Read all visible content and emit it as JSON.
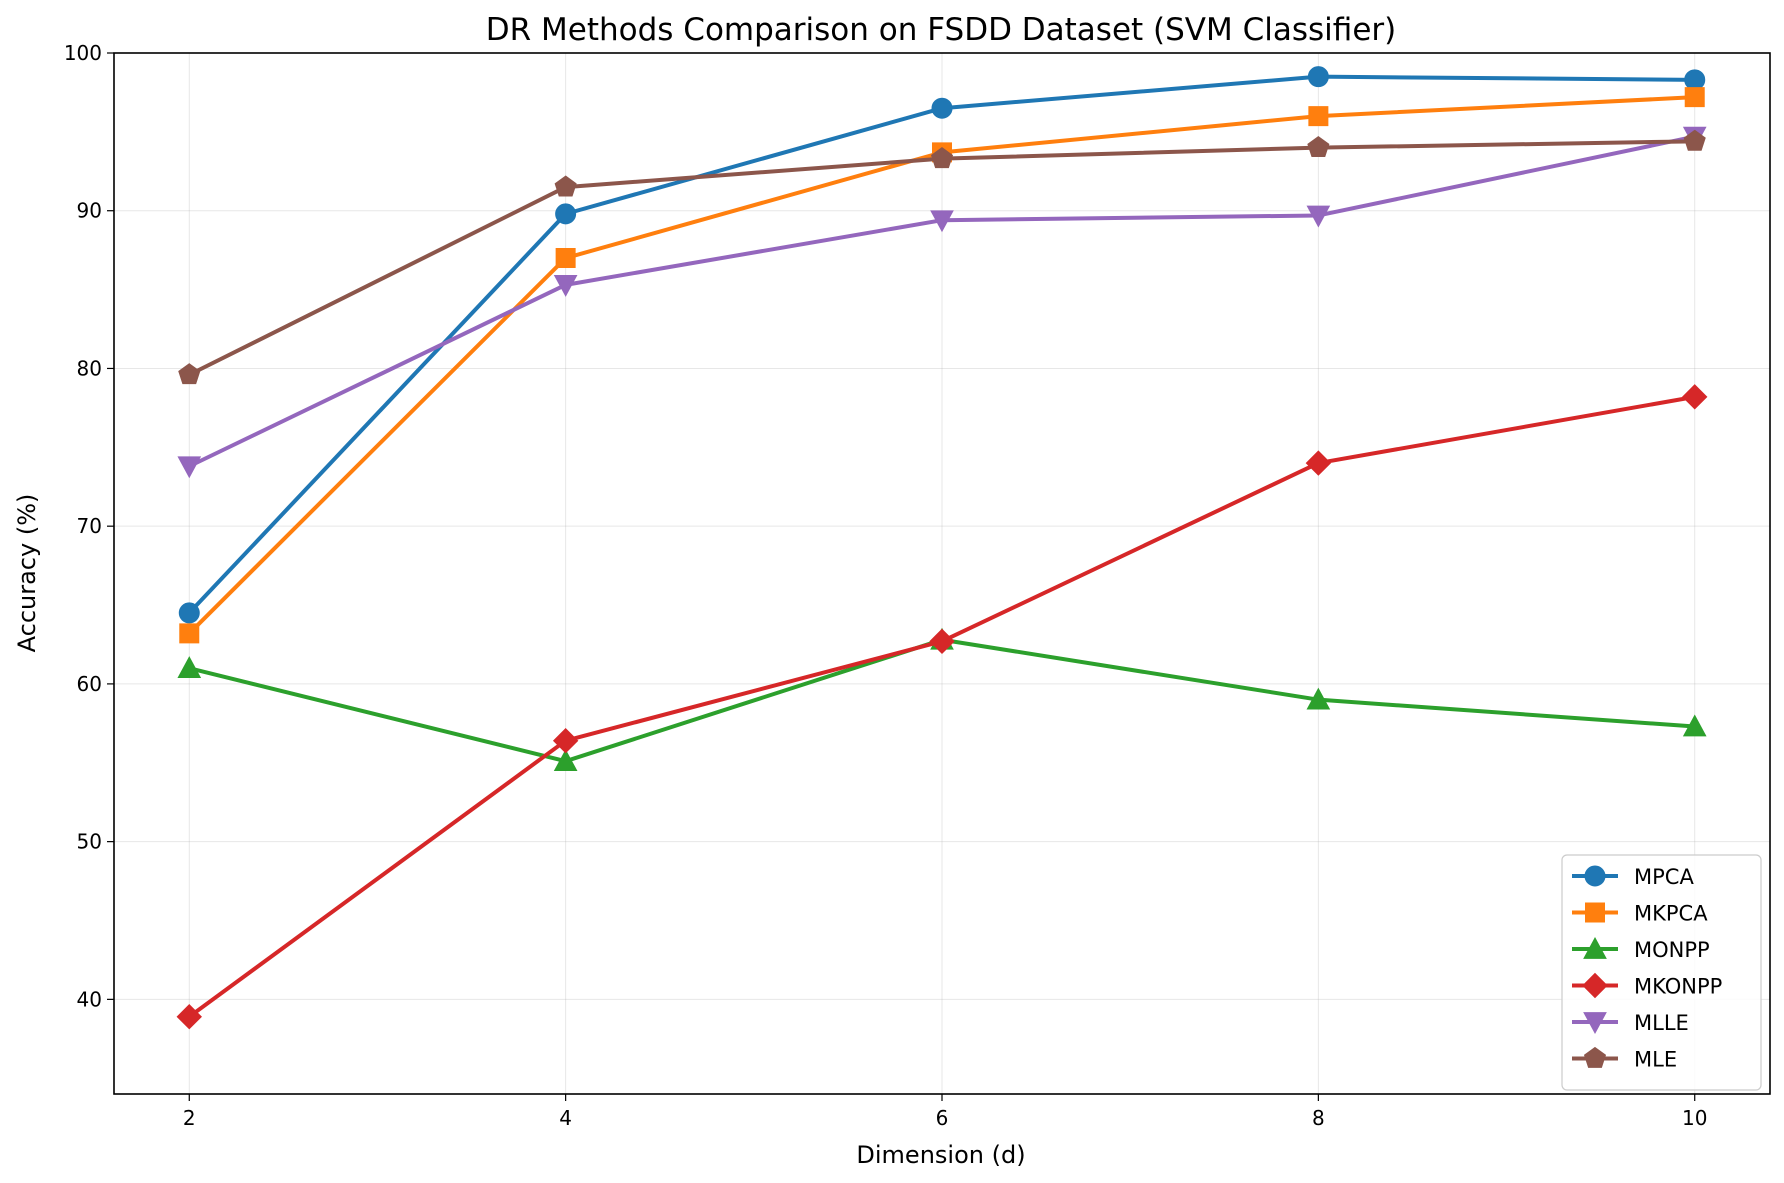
{
  "chart_data": {
    "type": "line",
    "title": "DR Methods Comparison on FSDD Dataset (SVM Classifier)",
    "xlabel": "Dimension (d)",
    "ylabel": "Accuracy (%)",
    "x": [
      2,
      4,
      6,
      8,
      10
    ],
    "xticks": [
      2,
      4,
      6,
      8,
      10
    ],
    "yticks": [
      40,
      50,
      60,
      70,
      80,
      90,
      100
    ],
    "xlim": [
      1.6,
      10.4
    ],
    "ylim": [
      34,
      100
    ],
    "grid": true,
    "legend_position": "lower-right",
    "series": [
      {
        "name": "MPCA",
        "color": "#1f77b4",
        "marker": "circle",
        "values": [
          64.5,
          89.8,
          96.5,
          98.5,
          98.3
        ]
      },
      {
        "name": "MKPCA",
        "color": "#ff7f0e",
        "marker": "square",
        "values": [
          63.2,
          87.0,
          93.7,
          96.0,
          97.2
        ]
      },
      {
        "name": "MONPP",
        "color": "#2ca02c",
        "marker": "triangle-up",
        "values": [
          61.0,
          55.1,
          62.8,
          59.0,
          57.3
        ]
      },
      {
        "name": "MKONPP",
        "color": "#d62728",
        "marker": "diamond",
        "values": [
          38.9,
          56.4,
          62.7,
          74.0,
          78.2
        ]
      },
      {
        "name": "MLLE",
        "color": "#9467bd",
        "marker": "triangle-down",
        "values": [
          73.8,
          85.3,
          89.4,
          89.7,
          94.7
        ]
      },
      {
        "name": "MLE",
        "color": "#8c564b",
        "marker": "pentagon",
        "values": [
          79.6,
          91.5,
          93.3,
          94.0,
          94.4
        ]
      }
    ]
  }
}
